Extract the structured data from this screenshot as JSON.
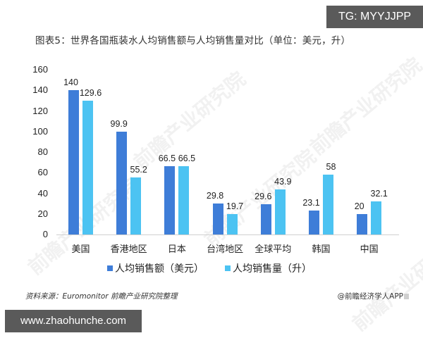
{
  "badges": {
    "top_right": "TG: MYYJJPP",
    "bottom_left": "www.zhaohunche.com"
  },
  "chart_data": {
    "type": "bar",
    "title": "图表5：世界各国瓶装水人均销售额与人均销售量对比（单位：美元，升）",
    "xlabel": "",
    "ylabel": "",
    "ylim": [
      0,
      160
    ],
    "yticks": [
      0,
      20,
      40,
      60,
      80,
      100,
      120,
      140,
      160
    ],
    "grid": false,
    "legend_position": "bottom",
    "categories": [
      "美国",
      "香港地区",
      "日本",
      "台湾地区",
      "全球平均",
      "韩国",
      "中国"
    ],
    "series": [
      {
        "name": "人均销售额（美元）",
        "color": "#3e7dd8",
        "values": [
          140,
          99.9,
          66.5,
          29.8,
          29.6,
          23.1,
          20
        ]
      },
      {
        "name": "人均销售量（升）",
        "color": "#4cc3f2",
        "values": [
          129.6,
          55.2,
          66.5,
          19.7,
          43.9,
          58,
          32.1
        ]
      }
    ],
    "data_labels": true
  },
  "footer": {
    "source": "资料来源：Euromonitor 前瞻产业研究院整理",
    "credit": "@前瞻经济学人APP"
  },
  "watermark_text": "前瞻产业研究院"
}
